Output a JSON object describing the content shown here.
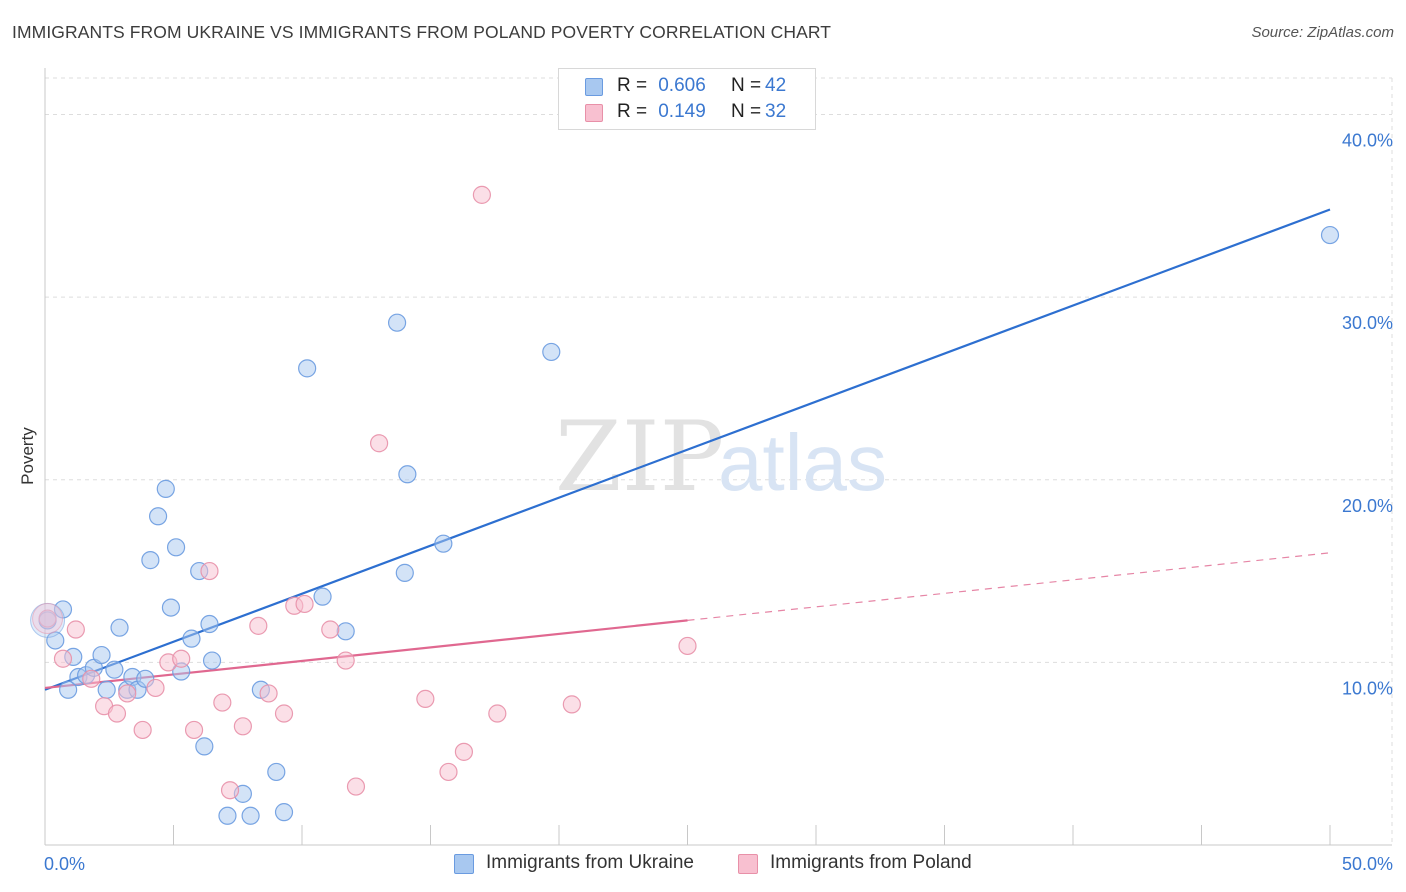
{
  "title": "IMMIGRANTS FROM UKRAINE VS IMMIGRANTS FROM POLAND POVERTY CORRELATION CHART",
  "source": "Source: ZipAtlas.com",
  "watermark": {
    "zip": "ZIP",
    "atlas": "atlas"
  },
  "legend": {
    "rows": [
      {
        "r_label": "R =",
        "r_value": "0.606",
        "n_label": "N =",
        "n_value": "42",
        "color": "#a8c8f0",
        "border": "#6a9be0"
      },
      {
        "r_label": "R =",
        "r_value": "0.149",
        "n_label": "N =",
        "n_value": "32",
        "color": "#f8c0d0",
        "border": "#e890a8"
      }
    ]
  },
  "colors": {
    "ukraine_fill": "#a8c8f0",
    "ukraine_stroke": "#6a9be0",
    "ukraine_line": "#2d6fd0",
    "poland_fill": "#f8c0d0",
    "poland_stroke": "#e890a8",
    "poland_line": "#e06890",
    "tick_text": "#3b78d0",
    "grid": "#dddddd"
  },
  "chart_data": {
    "type": "scatter",
    "title": "IMMIGRANTS FROM UKRAINE VS IMMIGRANTS FROM POLAND POVERTY CORRELATION CHART",
    "xlabel": "",
    "ylabel": "Poverty",
    "xlim": [
      0,
      50
    ],
    "ylim": [
      0,
      42
    ],
    "x_tick_labels": [
      "0.0%",
      "50.0%"
    ],
    "y_ticks": [
      10,
      20,
      30,
      40
    ],
    "y_tick_labels": [
      "10.0%",
      "20.0%",
      "30.0%",
      "40.0%"
    ],
    "grid": true,
    "series": [
      {
        "name": "Immigrants from Ukraine",
        "r": 0.606,
        "n": 42,
        "points": [
          [
            0.1,
            12.3
          ],
          [
            0.4,
            11.2
          ],
          [
            0.7,
            12.9
          ],
          [
            0.9,
            8.5
          ],
          [
            1.1,
            10.3
          ],
          [
            1.3,
            9.2
          ],
          [
            1.6,
            9.3
          ],
          [
            1.9,
            9.7
          ],
          [
            2.2,
            10.4
          ],
          [
            2.4,
            8.5
          ],
          [
            2.7,
            9.6
          ],
          [
            2.9,
            11.9
          ],
          [
            3.2,
            8.5
          ],
          [
            3.4,
            9.2
          ],
          [
            3.6,
            8.5
          ],
          [
            3.9,
            9.1
          ],
          [
            4.1,
            15.6
          ],
          [
            4.4,
            18.0
          ],
          [
            4.7,
            19.5
          ],
          [
            4.9,
            13.0
          ],
          [
            5.1,
            16.3
          ],
          [
            5.3,
            9.5
          ],
          [
            5.7,
            11.3
          ],
          [
            6.0,
            15.0
          ],
          [
            6.2,
            5.4
          ],
          [
            6.4,
            12.1
          ],
          [
            6.5,
            10.1
          ],
          [
            7.1,
            1.6
          ],
          [
            7.7,
            2.8
          ],
          [
            8.0,
            1.6
          ],
          [
            8.4,
            8.5
          ],
          [
            9.0,
            4.0
          ],
          [
            9.3,
            1.8
          ],
          [
            10.2,
            26.1
          ],
          [
            10.8,
            13.6
          ],
          [
            11.7,
            11.7
          ],
          [
            13.7,
            28.6
          ],
          [
            14.1,
            20.3
          ],
          [
            14.0,
            14.9
          ],
          [
            15.5,
            16.5
          ],
          [
            19.7,
            27.0
          ],
          [
            50.0,
            33.4
          ]
        ],
        "trend": {
          "x": [
            0,
            50
          ],
          "y": [
            8.5,
            34.8
          ]
        }
      },
      {
        "name": "Immigrants from Poland",
        "r": 0.149,
        "n": 32,
        "points": [
          [
            0.1,
            12.4
          ],
          [
            0.7,
            10.2
          ],
          [
            1.2,
            11.8
          ],
          [
            1.8,
            9.1
          ],
          [
            2.3,
            7.6
          ],
          [
            2.8,
            7.2
          ],
          [
            3.2,
            8.3
          ],
          [
            3.8,
            6.3
          ],
          [
            4.3,
            8.6
          ],
          [
            4.8,
            10.0
          ],
          [
            5.3,
            10.2
          ],
          [
            5.8,
            6.3
          ],
          [
            6.4,
            15.0
          ],
          [
            6.9,
            7.8
          ],
          [
            7.2,
            3.0
          ],
          [
            7.7,
            6.5
          ],
          [
            8.3,
            12.0
          ],
          [
            8.7,
            8.3
          ],
          [
            9.3,
            7.2
          ],
          [
            9.7,
            13.1
          ],
          [
            10.1,
            13.2
          ],
          [
            11.1,
            11.8
          ],
          [
            11.7,
            10.1
          ],
          [
            12.1,
            3.2
          ],
          [
            13.0,
            22.0
          ],
          [
            14.8,
            8.0
          ],
          [
            15.7,
            4.0
          ],
          [
            16.3,
            5.1
          ],
          [
            17.0,
            35.6
          ],
          [
            17.6,
            7.2
          ],
          [
            20.5,
            7.7
          ],
          [
            25.0,
            10.9
          ]
        ],
        "trend": {
          "x": [
            0,
            25
          ],
          "y": [
            8.6,
            12.3
          ]
        },
        "trend_dashed": {
          "x": [
            25,
            50
          ],
          "y": [
            12.3,
            16.0
          ]
        }
      }
    ]
  }
}
